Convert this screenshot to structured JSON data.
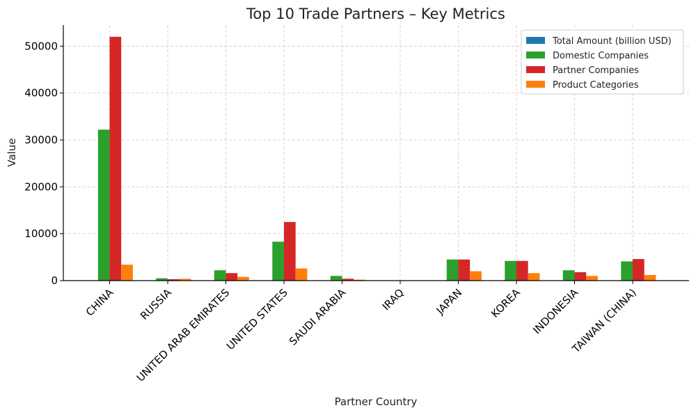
{
  "chart_data": {
    "type": "bar",
    "title": "Top 10 Trade Partners – Key Metrics",
    "xlabel": "Partner Country",
    "ylabel": "Value",
    "ylim": [
      0,
      54500
    ],
    "yticks": [
      0,
      10000,
      20000,
      30000,
      40000,
      50000
    ],
    "grid": true,
    "legend_position": "top-right",
    "categories": [
      "CHINA",
      "RUSSIA",
      "UNITED ARAB EMIRATES",
      "UNITED STATES",
      "SAUDI ARABIA",
      "IRAQ",
      "JAPAN",
      "KOREA",
      "INDONESIA",
      "TAIWAN (CHINA)"
    ],
    "series": [
      {
        "name": "Total Amount (billion USD)",
        "color": "#1f77b4",
        "values": [
          50,
          40,
          25,
          45,
          15,
          10,
          20,
          18,
          10,
          15
        ]
      },
      {
        "name": "Domestic Companies",
        "color": "#2ca02c",
        "values": [
          32200,
          500,
          2200,
          8300,
          1000,
          50,
          4500,
          4200,
          2200,
          4100
        ]
      },
      {
        "name": "Partner Companies",
        "color": "#d62728",
        "values": [
          52000,
          300,
          1600,
          12500,
          400,
          30,
          4500,
          4200,
          1800,
          4600
        ]
      },
      {
        "name": "Product Categories",
        "color": "#ff7f0e",
        "values": [
          3400,
          400,
          800,
          2600,
          200,
          20,
          2000,
          1600,
          1000,
          1200
        ]
      }
    ]
  }
}
